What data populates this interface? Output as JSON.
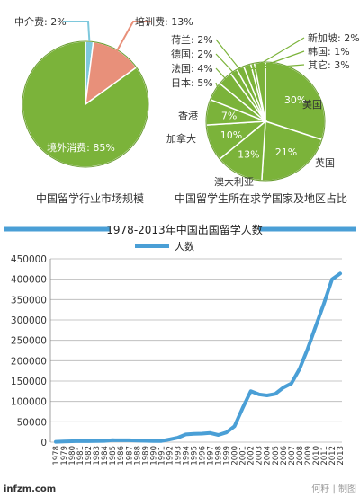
{
  "chart_data": [
    {
      "type": "pie",
      "title": "中国留学行业市场规模",
      "slices": [
        {
          "label": "境外消费",
          "value": 85,
          "display": "境外消费: 85%",
          "color": "#7bb33a"
        },
        {
          "label": "培训费",
          "value": 13,
          "display": "培训费: 13%",
          "color": "#e8907a"
        },
        {
          "label": "中介费",
          "value": 2,
          "display": "中介费: 2%",
          "color": "#7ec8dc"
        }
      ]
    },
    {
      "type": "pie",
      "title": "中国留学生所在求学国家及地区占比",
      "slices": [
        {
          "label": "美国",
          "value": 30,
          "color": "#7bb33a"
        },
        {
          "label": "英国",
          "value": 21,
          "color": "#7bb33a"
        },
        {
          "label": "澳大利亚",
          "value": 13,
          "color": "#7bb33a"
        },
        {
          "label": "加拿大",
          "value": 10,
          "color": "#7bb33a"
        },
        {
          "label": "香港",
          "value": 7,
          "color": "#7bb33a"
        },
        {
          "label": "日本",
          "value": 5,
          "color": "#7bb33a"
        },
        {
          "label": "法国",
          "value": 4,
          "color": "#7bb33a"
        },
        {
          "label": "德国",
          "value": 2,
          "color": "#7bb33a"
        },
        {
          "label": "荷兰",
          "value": 2,
          "color": "#7bb33a"
        },
        {
          "label": "新加坡",
          "value": 2,
          "color": "#7bb33a"
        },
        {
          "label": "韩国",
          "value": 1,
          "color": "#7bb33a"
        },
        {
          "label": "其它",
          "value": 3,
          "color": "#7bb33a"
        }
      ],
      "inside_labels": [
        "30%",
        "21%",
        "13%",
        "10%",
        "7%"
      ],
      "outside_labels": {
        "荷兰": "荷兰: 2%",
        "德国": "德国: 2%",
        "法国": "法国: 4%",
        "日本": "日本: 5%",
        "新加坡": "新加坡: 2%",
        "韩国": "韩国: 1%",
        "其它": "其它: 3%"
      }
    },
    {
      "type": "line",
      "title": "1978-2013年中国出国留学人数",
      "legend": "人数",
      "series_color": "#4a9fd6",
      "ylim": [
        0,
        450000
      ],
      "yticks": [
        0,
        50000,
        100000,
        150000,
        200000,
        250000,
        300000,
        350000,
        400000,
        450000
      ],
      "x": [
        "1978",
        "1979",
        "1980",
        "1981",
        "1982",
        "1983",
        "1984",
        "1985",
        "1986",
        "1987",
        "1988",
        "1989",
        "1990",
        "1991",
        "1992",
        "1993",
        "1994",
        "1995",
        "1996",
        "1997",
        "1998",
        "1999",
        "2000",
        "2001",
        "2002",
        "2003",
        "2004",
        "2005",
        "2006",
        "2007",
        "2008",
        "2009",
        "2010",
        "2011",
        "2012",
        "2013"
      ],
      "series": [
        {
          "name": "人数",
          "values": [
            860,
            1777,
            2124,
            2922,
            2326,
            2633,
            3073,
            4888,
            4676,
            4703,
            3786,
            3329,
            2950,
            2900,
            6540,
            10742,
            19071,
            20381,
            20905,
            22410,
            17622,
            23749,
            38989,
            83973,
            125179,
            117307,
            114682,
            118515,
            134000,
            144000,
            179800,
            229300,
            284700,
            339700,
            399600,
            413900
          ]
        }
      ],
      "watermark": "infzm.com",
      "credit": "何籽 | 制图"
    }
  ]
}
